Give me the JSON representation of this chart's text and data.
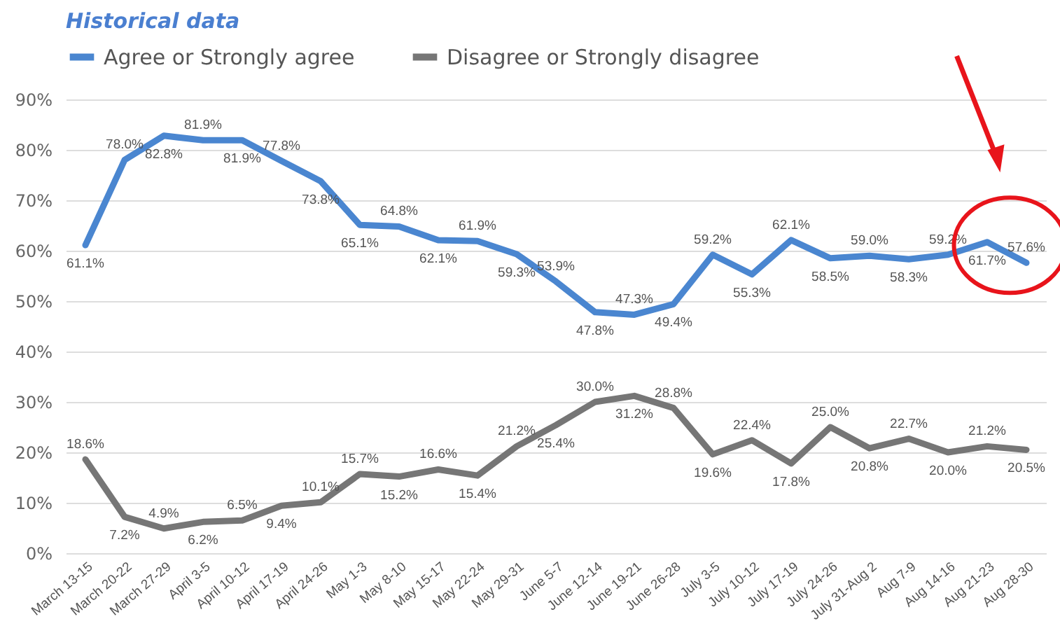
{
  "chart_data": {
    "type": "line",
    "title": "Historical data",
    "categories": [
      "March 13-15",
      "March 20-22",
      "March 27-29",
      "April 3-5",
      "April 10-12",
      "April 17-19",
      "April 24-26",
      "May 1-3",
      "May 8-10",
      "May 15-17",
      "May 22-24",
      "May 29-31",
      "June 5-7",
      "June 12-14",
      "June 19-21",
      "June 26-28",
      "July 3-5",
      "July 10-12",
      "July 17-19",
      "July 24-26",
      "July 31-Aug 2",
      "Aug 7-9",
      "Aug 14-16",
      "Aug 21-23",
      "Aug 28-30"
    ],
    "series": [
      {
        "name": "Agree or Strongly agree",
        "color": "#4a86d0",
        "values": [
          61.1,
          78.0,
          82.8,
          81.9,
          81.9,
          77.8,
          73.8,
          65.1,
          64.8,
          62.1,
          61.9,
          59.3,
          53.9,
          47.8,
          47.3,
          49.4,
          59.2,
          55.3,
          62.1,
          58.5,
          59.0,
          58.3,
          59.2,
          61.7,
          57.6
        ],
        "value_labels": [
          "61.1%",
          "78.0%",
          "82.8%",
          "81.9%",
          "81.9%",
          "77.8%",
          "73.8%",
          "65.1%",
          "64.8%",
          "62.1%",
          "61.9%",
          "59.3%",
          "53.9%",
          "47.8%",
          "47.3%",
          "49.4%",
          "59.2%",
          "55.3%",
          "62.1%",
          "58.5%",
          "59.0%",
          "58.3%",
          "59.2%",
          "61.7%",
          "57.6%"
        ]
      },
      {
        "name": "Disagree or Strongly disagree",
        "color": "#767676",
        "values": [
          18.6,
          7.2,
          4.9,
          6.2,
          6.5,
          9.4,
          10.1,
          15.7,
          15.2,
          16.6,
          15.4,
          21.2,
          25.4,
          30.0,
          31.2,
          28.8,
          19.6,
          22.4,
          17.8,
          25.0,
          20.8,
          22.7,
          20.0,
          21.2,
          20.5
        ],
        "value_labels": [
          "18.6%",
          "7.2%",
          "4.9%",
          "6.2%",
          "6.5%",
          "9.4%",
          "10.1%",
          "15.7%",
          "15.2%",
          "16.6%",
          "15.4%",
          "21.2%",
          "25.4%",
          "30.0%",
          "31.2%",
          "28.8%",
          "19.6%",
          "22.4%",
          "17.8%",
          "25.0%",
          "20.8%",
          "22.7%",
          "20.0%",
          "21.2%",
          "20.5%"
        ]
      }
    ],
    "ylim": [
      0,
      90
    ],
    "yticks": [
      {
        "value": 0,
        "label": "0%"
      },
      {
        "value": 10,
        "label": "10%"
      },
      {
        "value": 20,
        "label": "20%"
      },
      {
        "value": 30,
        "label": "30%"
      },
      {
        "value": 40,
        "label": "40%"
      },
      {
        "value": 50,
        "label": "50%"
      },
      {
        "value": 60,
        "label": "60%"
      },
      {
        "value": 70,
        "label": "70%"
      },
      {
        "value": 80,
        "label": "80%"
      },
      {
        "value": 90,
        "label": "90%"
      }
    ],
    "grid": "y",
    "legend": "top",
    "marker": "none",
    "line_style": "solid"
  }
}
